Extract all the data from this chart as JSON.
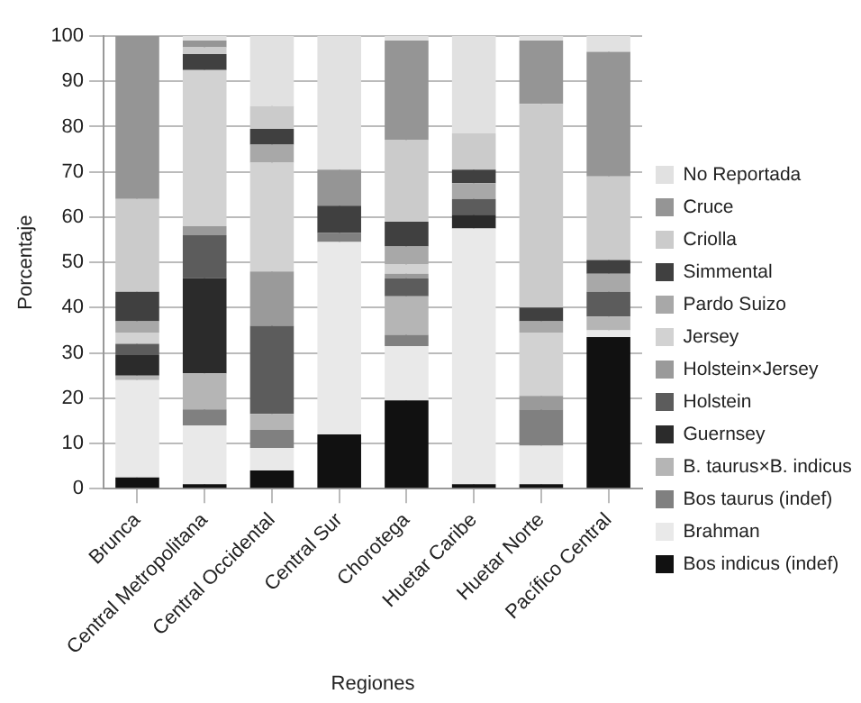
{
  "chart_data": {
    "type": "bar",
    "stacked": true,
    "xlabel": "Regiones",
    "ylabel": "Porcentaje",
    "categories": [
      "Brunca",
      "Central Metropolitana",
      "Central Occidental",
      "Central Sur",
      "Chorotega",
      "Huetar Caribe",
      "Huetar Norte",
      "Pacífico Central"
    ],
    "ylim": [
      0,
      100
    ],
    "yticks": [
      0,
      10,
      20,
      30,
      40,
      50,
      60,
      70,
      80,
      90,
      100
    ],
    "grid": true,
    "legend": "right",
    "series": [
      {
        "name": "Bos indicus (indef)",
        "color": "#111111",
        "values": [
          2.5,
          1,
          4,
          12,
          19.5,
          1,
          1,
          33.5
        ]
      },
      {
        "name": "Brahman",
        "color": "#e9e9e9",
        "values": [
          21.5,
          13,
          5,
          42.5,
          12,
          56.5,
          8.5,
          1.5
        ]
      },
      {
        "name": "Bos taurus (indef)",
        "color": "#808080",
        "values": [
          0,
          3.5,
          4,
          2,
          2.5,
          0,
          8,
          0
        ]
      },
      {
        "name": "B. taurus×B. indicus",
        "color": "#b5b5b5",
        "values": [
          1,
          8,
          3.5,
          0,
          8.5,
          0,
          0,
          3
        ]
      },
      {
        "name": "Guernsey",
        "color": "#2b2b2b",
        "values": [
          4.5,
          21,
          0,
          0,
          0,
          3,
          0,
          0
        ]
      },
      {
        "name": "Holstein",
        "color": "#5c5c5c",
        "values": [
          2.5,
          9.5,
          19.5,
          0,
          4,
          3.5,
          0,
          5.5
        ]
      },
      {
        "name": "Holstein×Jersey",
        "color": "#9a9a9a",
        "values": [
          0,
          2,
          12,
          0,
          1,
          0,
          3,
          0
        ]
      },
      {
        "name": "Jersey",
        "color": "#d2d2d2",
        "values": [
          2.5,
          34.5,
          24,
          0,
          2,
          0,
          14,
          0
        ]
      },
      {
        "name": "Pardo Suizo",
        "color": "#a8a8a8",
        "values": [
          2.5,
          0,
          4,
          0,
          4,
          3.5,
          2.5,
          4
        ]
      },
      {
        "name": "Simmental",
        "color": "#404040",
        "values": [
          6.5,
          3.5,
          3.5,
          6,
          5.5,
          3,
          3,
          3
        ]
      },
      {
        "name": "Criolla",
        "color": "#cbcbcb",
        "values": [
          20.5,
          1.5,
          5,
          0,
          18,
          8,
          45,
          18.5
        ]
      },
      {
        "name": "Cruce",
        "color": "#959595",
        "values": [
          36,
          1.5,
          0,
          8,
          22,
          0,
          14,
          27.5
        ]
      },
      {
        "name": "No Reportada",
        "color": "#e1e1e1",
        "values": [
          0,
          1,
          15.5,
          29.5,
          1,
          21.5,
          1,
          3.5
        ]
      }
    ]
  }
}
